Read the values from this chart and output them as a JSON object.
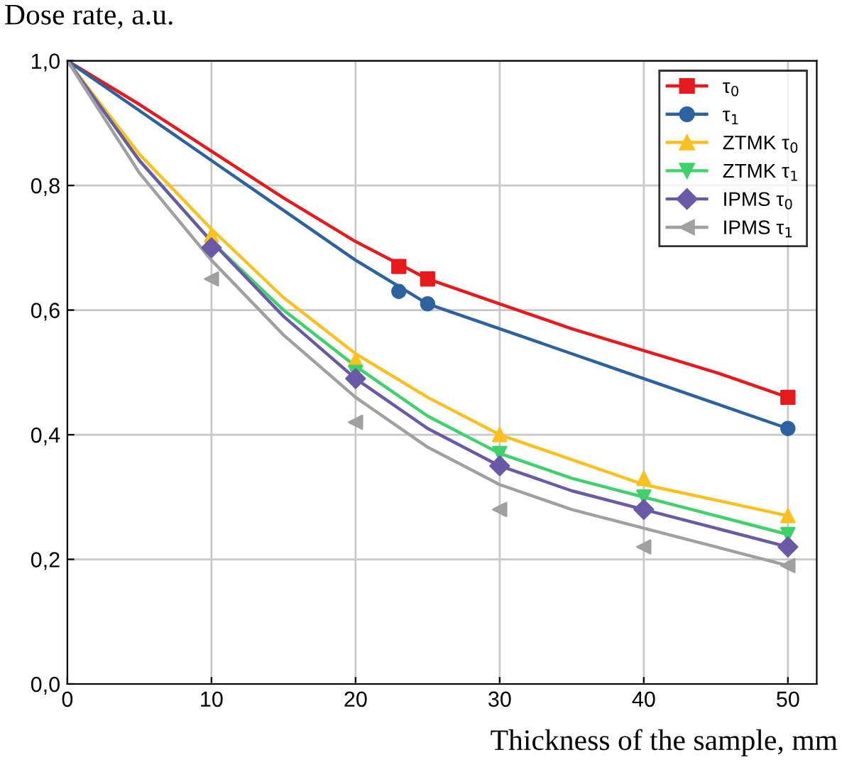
{
  "chart_data": {
    "type": "line",
    "ylabel": "Dose rate, a.u.",
    "xlabel": "Thickness of the sample, mm",
    "xlim": [
      0,
      52
    ],
    "ylim": [
      0,
      1
    ],
    "xticks": [
      0,
      10,
      20,
      30,
      40,
      50
    ],
    "yticks": [
      {
        "value": 0,
        "label": "0,0"
      },
      {
        "value": 0.2,
        "label": "0,2"
      },
      {
        "value": 0.4,
        "label": "0,4"
      },
      {
        "value": 0.6,
        "label": "0,6"
      },
      {
        "value": 0.8,
        "label": "0,8"
      },
      {
        "value": 1,
        "label": "1,0"
      }
    ],
    "grid": true,
    "legend": "top right",
    "series": [
      {
        "name": "τ$_{0}$",
        "color": "#e8191c",
        "x": [
          0,
          5,
          10,
          15,
          20,
          25,
          30,
          35,
          40,
          45,
          50
        ],
        "values": [
          1,
          0.93,
          0.855,
          0.78,
          0.71,
          0.65,
          0.61,
          0.57,
          0.535,
          0.5,
          0.46
        ]
      },
      {
        "color": "#e8191c",
        "type": "scatter",
        "marker": "square",
        "x": [
          23,
          25,
          50
        ],
        "values": [
          0.67,
          0.65,
          0.46
        ]
      },
      {
        "name": "τ$_{1}$",
        "color": "#2d62a1",
        "x": [
          0,
          5,
          10,
          15,
          20,
          25,
          30,
          35,
          40,
          45,
          50
        ],
        "values": [
          1,
          0.92,
          0.84,
          0.76,
          0.68,
          0.61,
          0.57,
          0.53,
          0.49,
          0.45,
          0.41
        ]
      },
      {
        "color": "#2d62a1",
        "type": "scatter",
        "marker": "circle",
        "x": [
          23,
          25,
          50
        ],
        "values": [
          0.63,
          0.61,
          0.41
        ]
      },
      {
        "name": "ZTMK τ$_{0}$",
        "color": "#fbc01f",
        "x": [
          0,
          5,
          10,
          15,
          20,
          25,
          30,
          35,
          40,
          45,
          50
        ],
        "values": [
          1,
          0.85,
          0.73,
          0.62,
          0.53,
          0.46,
          0.4,
          0.36,
          0.32,
          0.295,
          0.27
        ]
      },
      {
        "color": "#fbc01f",
        "type": "scatter",
        "marker": "triangle",
        "x": [
          10,
          20,
          30,
          40,
          50
        ],
        "values": [
          0.72,
          0.52,
          0.4,
          0.33,
          0.27
        ]
      },
      {
        "name": "ZTMK τ$_{1}$",
        "color": "#3fd16b",
        "x": [
          0,
          5,
          10,
          15,
          20,
          25,
          30,
          35,
          40,
          45,
          50
        ],
        "values": [
          1,
          0.84,
          0.71,
          0.6,
          0.51,
          0.43,
          0.37,
          0.33,
          0.3,
          0.27,
          0.24
        ]
      },
      {
        "color": "#3fd16b",
        "type": "scatter",
        "marker": "triangle_down",
        "x": [
          20,
          30,
          40,
          50
        ],
        "values": [
          0.5,
          0.37,
          0.3,
          0.24
        ]
      },
      {
        "name": "IPMS τ$_{0}$",
        "color": "#6a5aa6",
        "x": [
          0,
          5,
          10,
          15,
          20,
          25,
          30,
          35,
          40,
          45,
          50
        ],
        "values": [
          1,
          0.84,
          0.71,
          0.59,
          0.49,
          0.41,
          0.35,
          0.31,
          0.28,
          0.25,
          0.22
        ]
      },
      {
        "color": "#6a5aa6",
        "type": "scatter",
        "marker": "diamond",
        "x": [
          10,
          20,
          30,
          40,
          50
        ],
        "values": [
          0.7,
          0.49,
          0.35,
          0.28,
          0.22
        ]
      },
      {
        "name": "IPMS τ$_{1}$",
        "color": "#a0a0a0",
        "x": [
          0,
          5,
          10,
          15,
          20,
          25,
          30,
          35,
          40,
          45,
          50
        ],
        "values": [
          1,
          0.82,
          0.68,
          0.56,
          0.46,
          0.38,
          0.32,
          0.28,
          0.25,
          0.22,
          0.19
        ]
      },
      {
        "color": "#a0a0a0",
        "type": "scatter",
        "marker": "triangle_left",
        "x": [
          10,
          20,
          30,
          40,
          50
        ],
        "values": [
          0.65,
          0.42,
          0.28,
          0.22,
          0.19
        ]
      }
    ]
  }
}
